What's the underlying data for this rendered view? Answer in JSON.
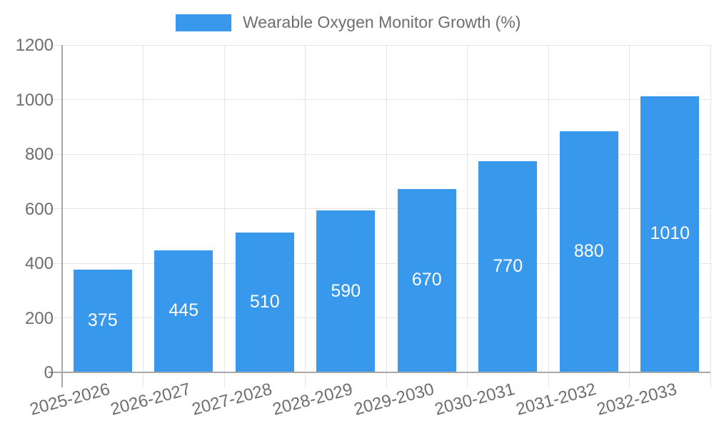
{
  "legend": {
    "label": "Wearable Oxygen Monitor Growth (%)",
    "swatch_color": "#3899ec"
  },
  "chart_data": {
    "type": "bar",
    "title": "Wearable Oxygen Monitor Growth (%)",
    "categories": [
      "2025-2026",
      "2026-2027",
      "2027-2028",
      "2028-2029",
      "2029-2030",
      "2030-2031",
      "2031-2032",
      "2032-2033"
    ],
    "values": [
      375,
      445,
      510,
      590,
      670,
      770,
      880,
      1010
    ],
    "xlabel": "",
    "ylabel": "",
    "ylim": [
      0,
      1200
    ],
    "yticks": [
      0,
      200,
      400,
      600,
      800,
      1000,
      1200
    ],
    "grid": true,
    "legend_position": "top-center",
    "bar_color": "#3899ec",
    "value_label_color": "#ffffff",
    "axis_text_color": "#6e6e6e",
    "grid_color": "#e5e5e5",
    "axis_line_color": "#a8a8a8"
  }
}
